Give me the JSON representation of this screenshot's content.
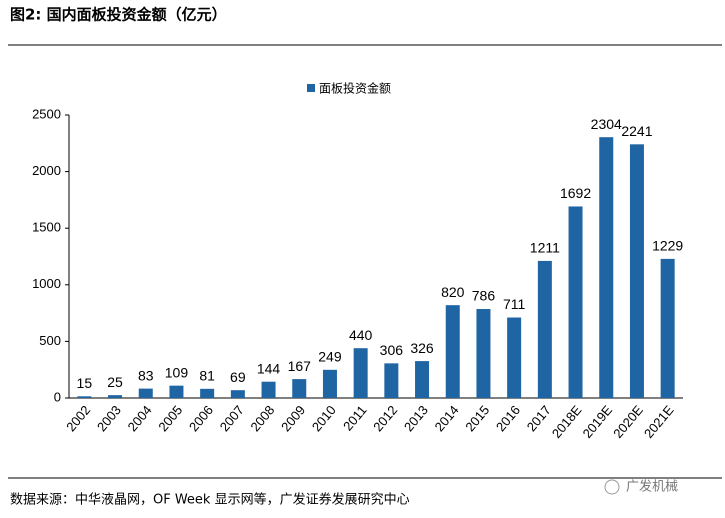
{
  "chart_data": {
    "type": "bar",
    "title": "图2: 国内面板投资金额（亿元）",
    "categories": [
      "2002",
      "2003",
      "2004",
      "2005",
      "2006",
      "2007",
      "2008",
      "2009",
      "2010",
      "2011",
      "2012",
      "2013",
      "2014",
      "2015",
      "2016",
      "2017",
      "2018E",
      "2019E",
      "2020E",
      "2021E"
    ],
    "series": [
      {
        "name": "面板投资金额",
        "color": "#1f64a3",
        "values": [
          15,
          25,
          83,
          109,
          81,
          69,
          144,
          167,
          249,
          440,
          306,
          326,
          820,
          786,
          711,
          1211,
          1692,
          2304,
          2241,
          1229
        ]
      }
    ],
    "ylim": [
      0,
      2500
    ],
    "yticks": [
      0,
      500,
      1000,
      1500,
      2000,
      2500
    ],
    "grid": false,
    "legend": "top"
  },
  "source": "数据来源：中华液晶网，OF Week 显示网等，广发证券发展研究中心",
  "watermark": "广发机械"
}
